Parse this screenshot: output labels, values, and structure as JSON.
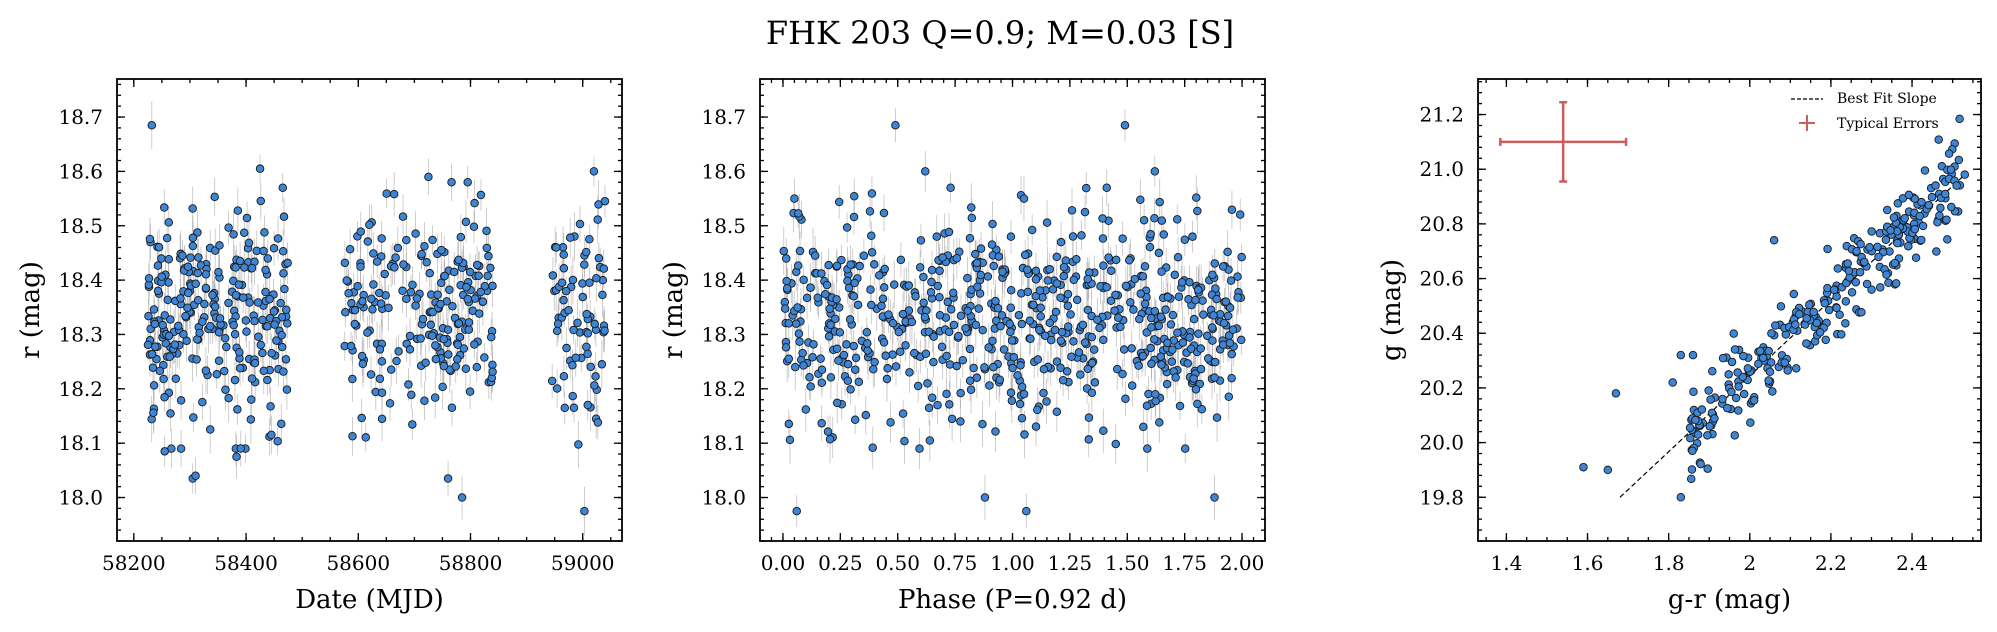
{
  "figure": {
    "title": "FHK 203  Q=0.9; M=0.03 [S]"
  },
  "chart_data": [
    {
      "type": "scatter",
      "xlabel": "Date (MJD)",
      "ylabel": "r (mag)",
      "xlim": [
        58170,
        59070
      ],
      "ylim": [
        18.77,
        17.92
      ],
      "y_inverted": true,
      "xticks": [
        58200,
        58400,
        58600,
        58800,
        59000
      ],
      "yticks": [
        18.0,
        18.1,
        18.2,
        18.3,
        18.4,
        18.5,
        18.6,
        18.7
      ],
      "marker_color": "#3d85d6",
      "errorbars": "vertical, light gray",
      "clusters": [
        {
          "x_range": [
            58225,
            58475
          ],
          "y_mean": 18.33,
          "y_sd": 0.1,
          "count": 260
        },
        {
          "x_range": [
            58575,
            58840
          ],
          "y_mean": 18.34,
          "y_sd": 0.1,
          "count": 210
        },
        {
          "x_range": [
            58940,
            59040
          ],
          "y_mean": 18.33,
          "y_sd": 0.1,
          "count": 75
        }
      ],
      "points": [
        {
          "x": 58232,
          "y": 18.685
        },
        {
          "x": 58305,
          "y": 18.035
        },
        {
          "x": 58310,
          "y": 18.04
        },
        {
          "x": 58425,
          "y": 18.605
        },
        {
          "x": 58785,
          "y": 18.0
        },
        {
          "x": 58760,
          "y": 18.035
        },
        {
          "x": 59003,
          "y": 17.975
        },
        {
          "x": 59020,
          "y": 18.6
        },
        {
          "x": 58725,
          "y": 18.59
        },
        {
          "x": 58795,
          "y": 18.58
        },
        {
          "x": 58383,
          "y": 18.075
        },
        {
          "x": 58255,
          "y": 18.085
        }
      ]
    },
    {
      "type": "scatter",
      "xlabel": "Phase (P=0.92 d)",
      "ylabel": "r (mag)",
      "xlim": [
        -0.1,
        2.1
      ],
      "ylim": [
        18.77,
        17.92
      ],
      "y_inverted": true,
      "xticks": [
        0.0,
        0.25,
        0.5,
        0.75,
        1.0,
        1.25,
        1.5,
        1.75,
        2.0
      ],
      "xtick_labels": [
        "0.00",
        "0.25",
        "0.50",
        "0.75",
        "1.00",
        "1.25",
        "1.50",
        "1.75",
        "2.00"
      ],
      "yticks": [
        18.0,
        18.1,
        18.2,
        18.3,
        18.4,
        18.5,
        18.6,
        18.7
      ],
      "marker_color": "#3d85d6",
      "errorbars": "vertical, light gray",
      "clusters": [
        {
          "x_range": [
            0.0,
            2.0
          ],
          "y_mean": 18.33,
          "y_sd": 0.1,
          "count": 700
        }
      ],
      "points": [
        {
          "x": 0.06,
          "y": 17.975
        },
        {
          "x": 1.06,
          "y": 17.975
        },
        {
          "x": 0.49,
          "y": 18.685
        },
        {
          "x": 1.49,
          "y": 18.685
        },
        {
          "x": 0.88,
          "y": 18.0
        },
        {
          "x": 1.88,
          "y": 18.0
        },
        {
          "x": 0.05,
          "y": 18.55
        },
        {
          "x": 1.05,
          "y": 18.55
        },
        {
          "x": 0.62,
          "y": 18.6
        },
        {
          "x": 1.62,
          "y": 18.6
        }
      ]
    },
    {
      "type": "scatter",
      "xlabel": "g-r (mag)",
      "ylabel": "g (mag)",
      "xlim": [
        1.33,
        2.57
      ],
      "ylim": [
        21.33,
        19.64
      ],
      "y_inverted": true,
      "xticks": [
        1.4,
        1.6,
        1.8,
        2.0,
        2.2,
        2.4
      ],
      "yticks": [
        19.8,
        20.0,
        20.2,
        20.4,
        20.6,
        20.8,
        21.0,
        21.2
      ],
      "yticks_labeled": [
        19.8,
        20.0,
        20.2,
        20.4,
        20.6,
        20.8,
        21.0,
        21.2
      ],
      "marker_color": "#3d85d6",
      "legend": {
        "placement": "top-right",
        "entries": [
          "Best Fit Slope",
          "Typical Errors"
        ]
      },
      "best_fit_line": {
        "x": [
          1.68,
          2.53
        ],
        "y": [
          19.8,
          20.98
        ]
      },
      "typical_errors": {
        "x": 1.54,
        "y": 21.1,
        "xerr": 0.155,
        "yerr": 0.145,
        "color": "#cd5c5c"
      },
      "clusters": [
        {
          "x_range": [
            1.85,
            2.52
          ],
          "trend": "along best fit line",
          "scatter": 0.08,
          "count": 300
        }
      ],
      "points": [
        {
          "x": 1.59,
          "y": 19.91
        },
        {
          "x": 1.65,
          "y": 19.9
        },
        {
          "x": 1.83,
          "y": 19.8
        },
        {
          "x": 1.67,
          "y": 20.18
        },
        {
          "x": 1.81,
          "y": 20.22
        },
        {
          "x": 1.83,
          "y": 20.32
        },
        {
          "x": 1.86,
          "y": 20.32
        },
        {
          "x": 2.06,
          "y": 20.74
        },
        {
          "x": 2.53,
          "y": 20.98
        },
        {
          "x": 2.51,
          "y": 20.94
        }
      ]
    }
  ]
}
